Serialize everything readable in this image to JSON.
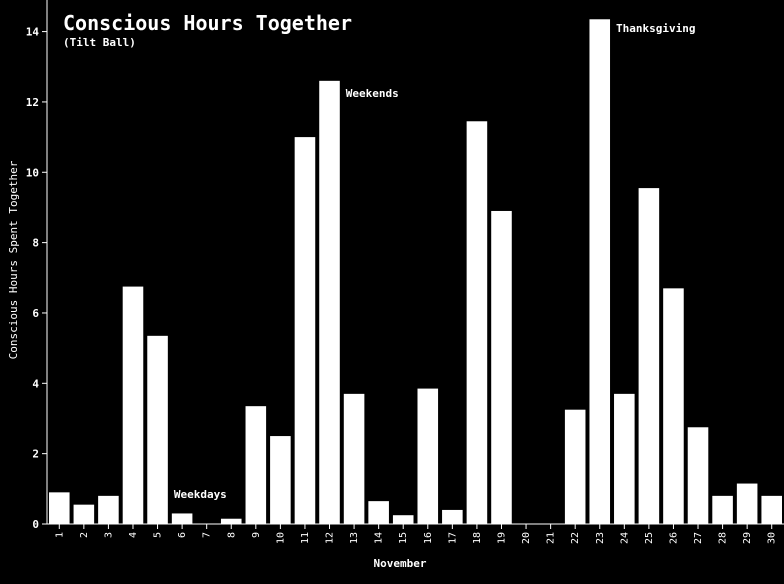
{
  "chart_data": {
    "type": "bar",
    "title": "Conscious Hours Together",
    "subtitle": "(Tilt Ball)",
    "xlabel": "November",
    "ylabel": "Conscious Hours Spent Together",
    "categories": [
      "1",
      "2",
      "3",
      "4",
      "5",
      "6",
      "7",
      "8",
      "9",
      "10",
      "11",
      "12",
      "13",
      "14",
      "15",
      "16",
      "17",
      "18",
      "19",
      "20",
      "21",
      "22",
      "23",
      "24",
      "25",
      "26",
      "27",
      "28",
      "29",
      "30"
    ],
    "values": [
      0.9,
      0.55,
      0.8,
      6.75,
      5.35,
      0.3,
      0.0,
      0.15,
      3.35,
      2.5,
      11.0,
      12.6,
      3.7,
      0.65,
      0.25,
      3.85,
      0.4,
      11.45,
      8.9,
      0.0,
      0.0,
      3.25,
      14.35,
      3.7,
      9.55,
      6.7,
      2.75,
      0.8,
      1.15,
      0.8
    ],
    "ylim": [
      0,
      14.5
    ],
    "yticks": [
      0,
      2,
      4,
      6,
      8,
      10,
      12,
      14
    ],
    "grid": false,
    "colors": {
      "background": "#000000",
      "bar": "#ffffff",
      "text": "#ffffff"
    },
    "annotations": [
      {
        "text": "Weekdays",
        "category": "6",
        "value": 0.85
      },
      {
        "text": "Weekends",
        "category": "13",
        "value": 12.25
      },
      {
        "text": "Thanksgiving",
        "category": "24",
        "value": 14.1
      }
    ]
  }
}
